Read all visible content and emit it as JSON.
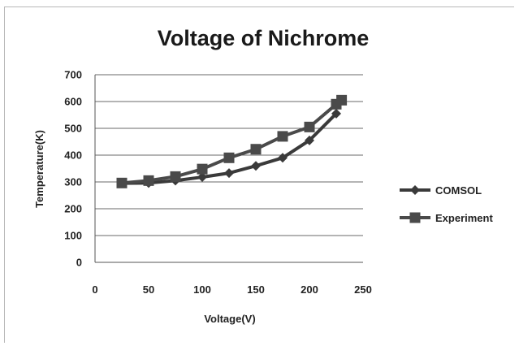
{
  "chart_data": {
    "type": "line",
    "title": "Voltage of Nichrome",
    "xlabel": "Voltage(V)",
    "ylabel": "Temperature(K)",
    "xlim": [
      0,
      250
    ],
    "ylim": [
      0,
      700
    ],
    "xticks": [
      0,
      50,
      100,
      150,
      200,
      250
    ],
    "yticks": [
      0,
      100,
      200,
      300,
      400,
      500,
      600,
      700
    ],
    "grid": "horizontal",
    "legend_position": "right",
    "series": [
      {
        "name": "COMSOL",
        "marker": "diamond",
        "color": "#3a3a3a",
        "x": [
          25,
          50,
          75,
          100,
          125,
          150,
          175,
          200,
          225
        ],
        "y": [
          295,
          296,
          305,
          318,
          333,
          360,
          390,
          455,
          555
        ]
      },
      {
        "name": "Experiment",
        "marker": "square",
        "color": "#4a4a4a",
        "x": [
          25,
          50,
          75,
          100,
          125,
          150,
          175,
          200,
          225,
          230
        ],
        "y": [
          296,
          305,
          320,
          348,
          390,
          422,
          470,
          505,
          590,
          605
        ]
      }
    ]
  }
}
